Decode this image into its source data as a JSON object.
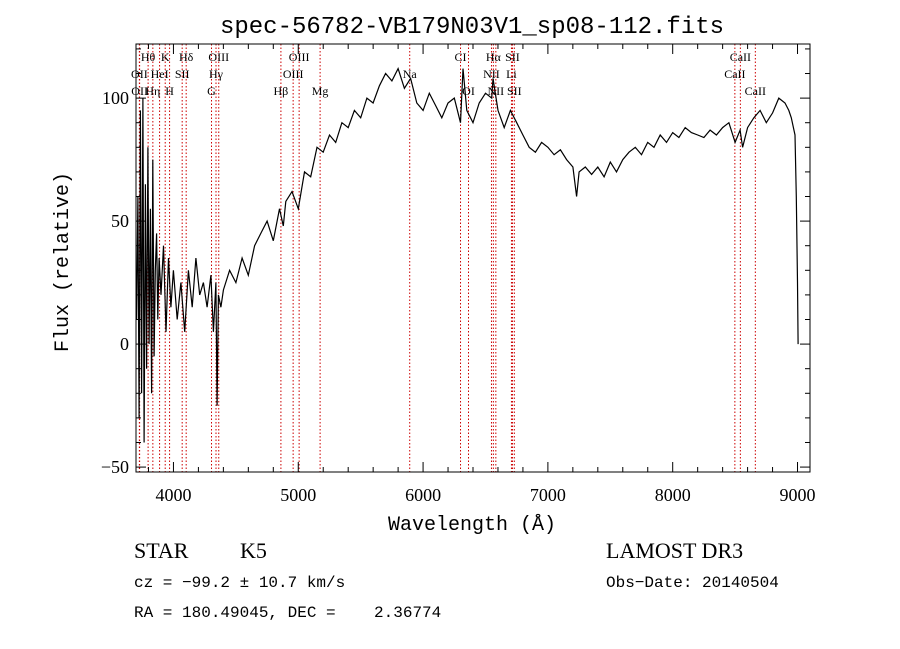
{
  "chart_data": {
    "type": "line",
    "title": "spec-56782-VB179N03V1_sp08-112.fits",
    "xlabel": "Wavelength (Å)",
    "ylabel": "Flux (relative)",
    "xlim": [
      3700,
      9100
    ],
    "ylim": [
      -52,
      122
    ],
    "x_ticks": [
      {
        "value": 4000,
        "label": "4000"
      },
      {
        "value": 5000,
        "label": "5000"
      },
      {
        "value": 6000,
        "label": "6000"
      },
      {
        "value": 7000,
        "label": "7000"
      },
      {
        "value": 8000,
        "label": "8000"
      },
      {
        "value": 9000,
        "label": "9000"
      }
    ],
    "y_ticks": [
      {
        "value": -50,
        "label": "−50"
      },
      {
        "value": 0,
        "label": "0"
      },
      {
        "value": 50,
        "label": "50"
      },
      {
        "value": 100,
        "label": "100"
      }
    ],
    "x_minor_step": 200,
    "y_minor_step": 10,
    "series": [
      {
        "name": "spectrum",
        "x": [
          3705,
          3715,
          3725,
          3735,
          3745,
          3755,
          3765,
          3775,
          3785,
          3795,
          3805,
          3815,
          3825,
          3835,
          3845,
          3855,
          3865,
          3875,
          3885,
          3900,
          3920,
          3940,
          3960,
          3980,
          4000,
          4030,
          4060,
          4090,
          4120,
          4150,
          4180,
          4210,
          4240,
          4270,
          4300,
          4320,
          4340,
          4350,
          4360,
          4380,
          4400,
          4450,
          4500,
          4550,
          4600,
          4650,
          4700,
          4750,
          4800,
          4850,
          4880,
          4900,
          4950,
          5000,
          5050,
          5100,
          5150,
          5200,
          5250,
          5300,
          5350,
          5400,
          5450,
          5500,
          5550,
          5600,
          5650,
          5700,
          5750,
          5800,
          5850,
          5900,
          5950,
          6000,
          6050,
          6100,
          6150,
          6200,
          6250,
          6300,
          6320,
          6350,
          6400,
          6450,
          6500,
          6550,
          6560,
          6600,
          6650,
          6700,
          6750,
          6800,
          6850,
          6900,
          6950,
          7000,
          7050,
          7100,
          7150,
          7200,
          7230,
          7250,
          7300,
          7350,
          7400,
          7450,
          7500,
          7550,
          7600,
          7650,
          7700,
          7750,
          7800,
          7850,
          7900,
          7950,
          8000,
          8050,
          8100,
          8150,
          8200,
          8250,
          8300,
          8350,
          8400,
          8450,
          8500,
          8540,
          8560,
          8600,
          8650,
          8700,
          8750,
          8800,
          8850,
          8900,
          8930,
          8950,
          8980,
          8990,
          9000,
          9005
        ],
        "values": [
          10,
          60,
          -30,
          95,
          -20,
          100,
          -40,
          65,
          -10,
          80,
          0,
          55,
          -20,
          75,
          -5,
          30,
          45,
          10,
          35,
          20,
          40,
          5,
          35,
          15,
          30,
          10,
          25,
          5,
          30,
          15,
          35,
          20,
          25,
          15,
          28,
          5,
          25,
          -25,
          20,
          15,
          22,
          30,
          25,
          35,
          28,
          40,
          45,
          50,
          42,
          55,
          48,
          58,
          62,
          55,
          70,
          68,
          80,
          78,
          85,
          82,
          90,
          88,
          95,
          92,
          100,
          98,
          105,
          110,
          107,
          112,
          104,
          108,
          98,
          95,
          102,
          97,
          92,
          98,
          100,
          90,
          112,
          95,
          90,
          98,
          102,
          100,
          108,
          95,
          88,
          95,
          90,
          85,
          80,
          78,
          82,
          80,
          77,
          79,
          75,
          72,
          60,
          70,
          72,
          69,
          72,
          68,
          74,
          70,
          75,
          78,
          80,
          77,
          82,
          80,
          85,
          82,
          86,
          84,
          88,
          86,
          85,
          84,
          87,
          85,
          88,
          90,
          82,
          87,
          80,
          88,
          92,
          95,
          90,
          94,
          100,
          98,
          95,
          92,
          85,
          60,
          25,
          0
        ],
        "color": "#000000"
      }
    ],
    "lines": [
      {
        "label": "Hθ",
        "wavelength": 3797,
        "row": 0
      },
      {
        "label": "K",
        "wavelength": 3934,
        "row": 0
      },
      {
        "label": "Hδ",
        "wavelength": 4102,
        "row": 0
      },
      {
        "label": "OIII",
        "wavelength": 4363,
        "row": 0
      },
      {
        "label": "OIII",
        "wavelength": 5007,
        "row": 0
      },
      {
        "label": "CI",
        "wavelength": 6300,
        "row": 0
      },
      {
        "label": "Hα",
        "wavelength": 6563,
        "row": 0
      },
      {
        "label": "SII",
        "wavelength": 6716,
        "row": 0
      },
      {
        "label": "CaII",
        "wavelength": 8542,
        "row": 0
      },
      {
        "label": "OII",
        "wavelength": 3727,
        "row": 1
      },
      {
        "label": "HeI",
        "wavelength": 3889,
        "row": 1
      },
      {
        "label": "SII",
        "wavelength": 4070,
        "row": 1
      },
      {
        "label": "Hγ",
        "wavelength": 4341,
        "row": 1
      },
      {
        "label": "OIII",
        "wavelength": 4959,
        "row": 1
      },
      {
        "label": "Na",
        "wavelength": 5893,
        "row": 1
      },
      {
        "label": "NII",
        "wavelength": 6548,
        "row": 1
      },
      {
        "label": "Li",
        "wavelength": 6708,
        "row": 1
      },
      {
        "label": "CaII",
        "wavelength": 8498,
        "row": 1
      },
      {
        "label": "OII",
        "wavelength": 3729,
        "row": 2
      },
      {
        "label": "Hη",
        "wavelength": 3835,
        "row": 2
      },
      {
        "label": "H",
        "wavelength": 3969,
        "row": 2
      },
      {
        "label": "G",
        "wavelength": 4305,
        "row": 2
      },
      {
        "label": "Hβ",
        "wavelength": 4861,
        "row": 2
      },
      {
        "label": "Mg",
        "wavelength": 5175,
        "row": 2
      },
      {
        "label": "OI",
        "wavelength": 6364,
        "row": 2
      },
      {
        "label": "NII",
        "wavelength": 6583,
        "row": 2
      },
      {
        "label": "SII",
        "wavelength": 6731,
        "row": 2
      },
      {
        "label": "CaII",
        "wavelength": 8662,
        "row": 2
      }
    ]
  },
  "info": {
    "object_class": "STAR",
    "subclass": "K5",
    "survey": "LAMOST DR3",
    "redshift": "cz = −99.2 ± 10.7 km/s",
    "obs_date": "Obs−Date: 20140504",
    "coords": "RA = 180.49045, DEC =    2.36774"
  }
}
